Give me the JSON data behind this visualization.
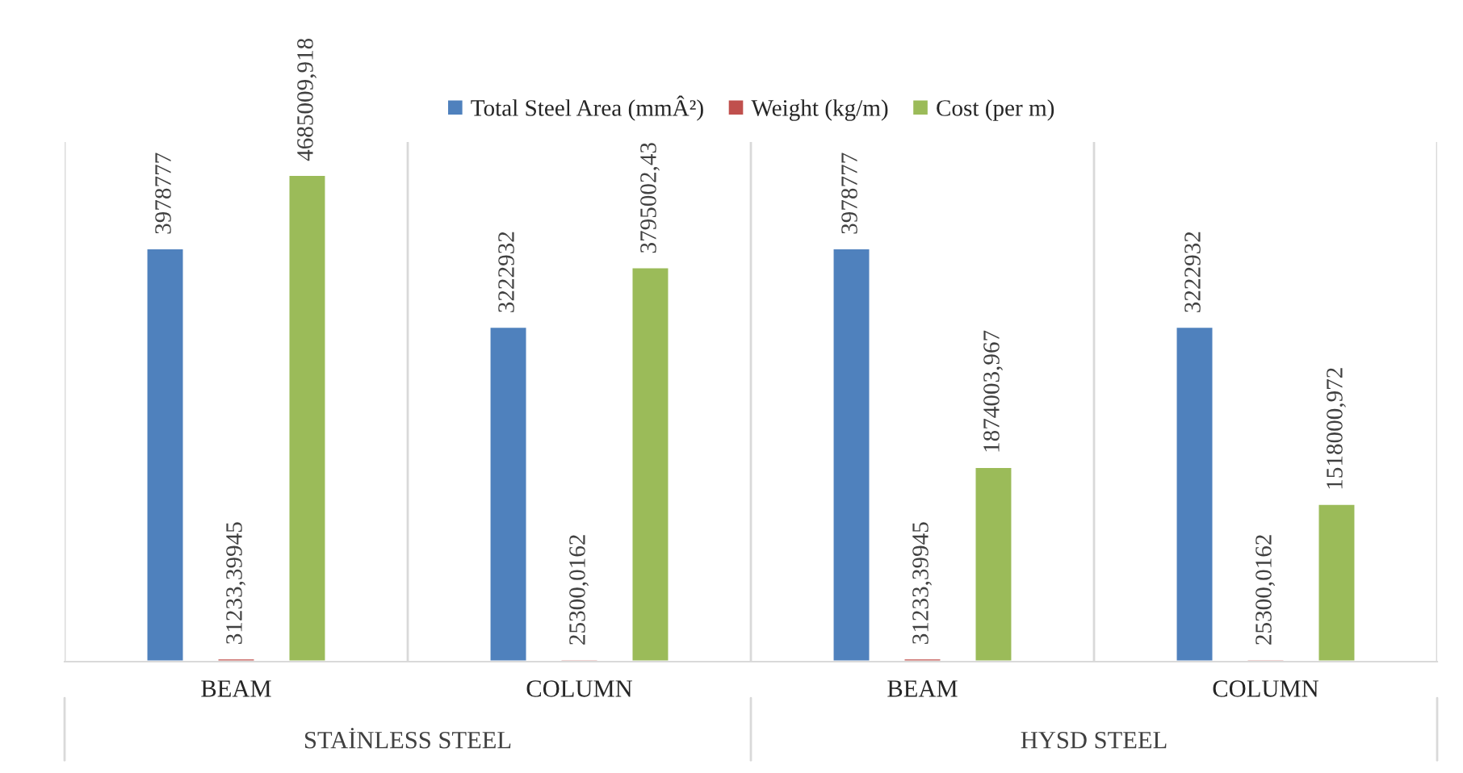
{
  "chart_data": {
    "type": "bar",
    "categories": [
      "BEAM",
      "COLUMN",
      "BEAM",
      "COLUMN"
    ],
    "series": [
      {
        "name": "Total Steel Area (mmÂ²)",
        "color": "#4f81bd",
        "values": [
          3978777,
          3222932,
          3978777,
          3222932
        ],
        "value_labels": [
          "3978777",
          "3222932",
          "3978777",
          "3222932"
        ]
      },
      {
        "name": "Weight (kg/m)",
        "color": "#c0504d",
        "values": [
          31233.39945,
          25300.0162,
          31233.39945,
          25300.0162
        ],
        "value_labels": [
          "31233,39945",
          "25300,0162",
          "31233,39945",
          "25300,0162"
        ]
      },
      {
        "name": "Cost (per m)",
        "color": "#9bbb59",
        "values": [
          4685009.918,
          3795002.43,
          1874003.967,
          1518000.972
        ],
        "value_labels": [
          "4685009,918",
          "3795002,43",
          "1874003,967",
          "1518000,972"
        ]
      }
    ],
    "annotations": [
      "STAİNLESS STEEL",
      "HYSD STEEL"
    ],
    "ylim": [
      0,
      5000000
    ],
    "tick_labels": "x",
    "grid": "x",
    "legend": "top"
  }
}
